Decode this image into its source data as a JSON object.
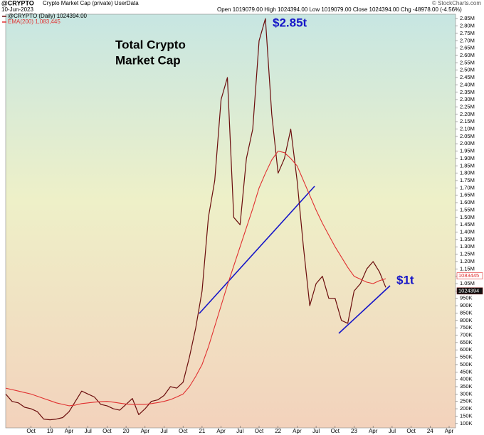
{
  "chart_data": {
    "type": "line",
    "symbol": "@CRYPTO",
    "name": "Crypto Market Cap (private) UserData",
    "date": "10-Jun-2023",
    "quote": "Open 1019079.00  High 1024394.00  Low 1019079.00  Close 1024394.00  Chg -48978.00 (-4.56%)",
    "credit": "© StockCharts.com",
    "annotations": {
      "title": [
        "Total Crypto",
        "Market Cap"
      ],
      "peak": "$2.85t",
      "now": "$1t"
    },
    "x": [
      "2018-06",
      "2018-07",
      "2018-08",
      "2018-09",
      "2018-10",
      "2018-11",
      "2018-12",
      "2019-01",
      "2019-02",
      "2019-03",
      "2019-04",
      "2019-05",
      "2019-06",
      "2019-07",
      "2019-08",
      "2019-09",
      "2019-10",
      "2019-11",
      "2019-12",
      "2020-01",
      "2020-02",
      "2020-03",
      "2020-04",
      "2020-05",
      "2020-06",
      "2020-07",
      "2020-08",
      "2020-09",
      "2020-10",
      "2020-11",
      "2020-12",
      "2021-01",
      "2021-02",
      "2021-03",
      "2021-04",
      "2021-05",
      "2021-06",
      "2021-07",
      "2021-08",
      "2021-09",
      "2021-10",
      "2021-11",
      "2021-12",
      "2022-01",
      "2022-02",
      "2022-03",
      "2022-04",
      "2022-05",
      "2022-06",
      "2022-07",
      "2022-08",
      "2022-09",
      "2022-10",
      "2022-11",
      "2022-12",
      "2023-01",
      "2023-02",
      "2023-03",
      "2023-04",
      "2023-05",
      "2023-06"
    ],
    "series": [
      {
        "name": "@CRYPTO (Daily) 1024394.00",
        "tag": "1024394",
        "color": "#6b0d0d",
        "values": [
          300000,
          250000,
          240000,
          210000,
          200000,
          180000,
          130000,
          125000,
          130000,
          140000,
          180000,
          250000,
          320000,
          300000,
          280000,
          230000,
          220000,
          200000,
          190000,
          230000,
          270000,
          160000,
          200000,
          250000,
          260000,
          290000,
          350000,
          340000,
          380000,
          550000,
          750000,
          1000000,
          1500000,
          1750000,
          2300000,
          2450000,
          1500000,
          1450000,
          1900000,
          2100000,
          2700000,
          2850000,
          2200000,
          1800000,
          1900000,
          2100000,
          1750000,
          1300000,
          900000,
          1050000,
          1100000,
          950000,
          950000,
          800000,
          780000,
          1000000,
          1050000,
          1150000,
          1200000,
          1130000,
          1024394
        ]
      },
      {
        "name": "EMA(200) 1,083,445",
        "tag": "1083445",
        "color": "#e03030",
        "values": [
          340000,
          330000,
          320000,
          310000,
          300000,
          285000,
          270000,
          255000,
          240000,
          230000,
          220000,
          225000,
          235000,
          240000,
          245000,
          248000,
          250000,
          245000,
          238000,
          232000,
          230000,
          230000,
          230000,
          235000,
          242000,
          250000,
          262000,
          280000,
          300000,
          350000,
          420000,
          500000,
          620000,
          760000,
          900000,
          1040000,
          1170000,
          1300000,
          1430000,
          1560000,
          1700000,
          1800000,
          1890000,
          1950000,
          1940000,
          1900000,
          1850000,
          1750000,
          1650000,
          1550000,
          1460000,
          1380000,
          1300000,
          1230000,
          1160000,
          1100000,
          1080000,
          1060000,
          1050000,
          1070000,
          1083445
        ]
      }
    ],
    "xlim": [
      "2018-06",
      "2024-04"
    ],
    "xticks": [
      {
        "value": "2018-10",
        "label": "Oct"
      },
      {
        "value": "2019-01",
        "label": "19"
      },
      {
        "value": "2019-04",
        "label": "Apr"
      },
      {
        "value": "2019-07",
        "label": "Jul"
      },
      {
        "value": "2019-10",
        "label": "Oct"
      },
      {
        "value": "2020-01",
        "label": "20"
      },
      {
        "value": "2020-04",
        "label": "Apr"
      },
      {
        "value": "2020-07",
        "label": "Jul"
      },
      {
        "value": "2020-10",
        "label": "Oct"
      },
      {
        "value": "2021-01",
        "label": "21"
      },
      {
        "value": "2021-04",
        "label": "Apr"
      },
      {
        "value": "2021-07",
        "label": "Jul"
      },
      {
        "value": "2021-10",
        "label": "Oct"
      },
      {
        "value": "2022-01",
        "label": "22"
      },
      {
        "value": "2022-04",
        "label": "Apr"
      },
      {
        "value": "2022-07",
        "label": "Jul"
      },
      {
        "value": "2022-10",
        "label": "Oct"
      },
      {
        "value": "2023-01",
        "label": "23"
      },
      {
        "value": "2023-04",
        "label": "Apr"
      },
      {
        "value": "2023-07",
        "label": "Jul"
      },
      {
        "value": "2023-10",
        "label": "Oct"
      },
      {
        "value": "2024-01",
        "label": "24"
      },
      {
        "value": "2024-04",
        "label": "Apr"
      }
    ],
    "ylim": [
      70000,
      2880000
    ],
    "yticks": [
      {
        "value": 100000,
        "label": "100K"
      },
      {
        "value": 150000,
        "label": "150K"
      },
      {
        "value": 200000,
        "label": "200K"
      },
      {
        "value": 250000,
        "label": "250K"
      },
      {
        "value": 300000,
        "label": "300K"
      },
      {
        "value": 350000,
        "label": "350K"
      },
      {
        "value": 400000,
        "label": "400K"
      },
      {
        "value": 450000,
        "label": "450K"
      },
      {
        "value": 500000,
        "label": "500K"
      },
      {
        "value": 550000,
        "label": "550K"
      },
      {
        "value": 600000,
        "label": "600K"
      },
      {
        "value": 650000,
        "label": "650K"
      },
      {
        "value": 700000,
        "label": "700K"
      },
      {
        "value": 750000,
        "label": "750K"
      },
      {
        "value": 800000,
        "label": "800K"
      },
      {
        "value": 850000,
        "label": "850K"
      },
      {
        "value": 900000,
        "label": "900K"
      },
      {
        "value": 950000,
        "label": "950K"
      },
      {
        "value": 1000000,
        "label": "1.00M"
      },
      {
        "value": 1050000,
        "label": "1.05M"
      },
      {
        "value": 1100000,
        "label": "1.10M"
      },
      {
        "value": 1150000,
        "label": "1.15M"
      },
      {
        "value": 1200000,
        "label": "1.20M"
      },
      {
        "value": 1250000,
        "label": "1.25M"
      },
      {
        "value": 1300000,
        "label": "1.30M"
      },
      {
        "value": 1350000,
        "label": "1.35M"
      },
      {
        "value": 1400000,
        "label": "1.40M"
      },
      {
        "value": 1450000,
        "label": "1.45M"
      },
      {
        "value": 1500000,
        "label": "1.50M"
      },
      {
        "value": 1550000,
        "label": "1.55M"
      },
      {
        "value": 1600000,
        "label": "1.60M"
      },
      {
        "value": 1650000,
        "label": "1.65M"
      },
      {
        "value": 1700000,
        "label": "1.70M"
      },
      {
        "value": 1750000,
        "label": "1.75M"
      },
      {
        "value": 1800000,
        "label": "1.80M"
      },
      {
        "value": 1850000,
        "label": "1.85M"
      },
      {
        "value": 1900000,
        "label": "1.90M"
      },
      {
        "value": 1950000,
        "label": "1.95M"
      },
      {
        "value": 2000000,
        "label": "2.00M"
      },
      {
        "value": 2050000,
        "label": "2.05M"
      },
      {
        "value": 2100000,
        "label": "2.10M"
      },
      {
        "value": 2150000,
        "label": "2.15M"
      },
      {
        "value": 2200000,
        "label": "2.20M"
      },
      {
        "value": 2250000,
        "label": "2.25M"
      },
      {
        "value": 2300000,
        "label": "2.30M"
      },
      {
        "value": 2350000,
        "label": "2.35M"
      },
      {
        "value": 2400000,
        "label": "2.40M"
      },
      {
        "value": 2450000,
        "label": "2.45M"
      },
      {
        "value": 2500000,
        "label": "2.50M"
      },
      {
        "value": 2550000,
        "label": "2.55M"
      },
      {
        "value": 2600000,
        "label": "2.60M"
      },
      {
        "value": 2650000,
        "label": "2.65M"
      },
      {
        "value": 2700000,
        "label": "2.70M"
      },
      {
        "value": 2750000,
        "label": "2.75M"
      },
      {
        "value": 2800000,
        "label": "2.80M"
      },
      {
        "value": 2850000,
        "label": "2.85M"
      }
    ],
    "grid": false
  }
}
